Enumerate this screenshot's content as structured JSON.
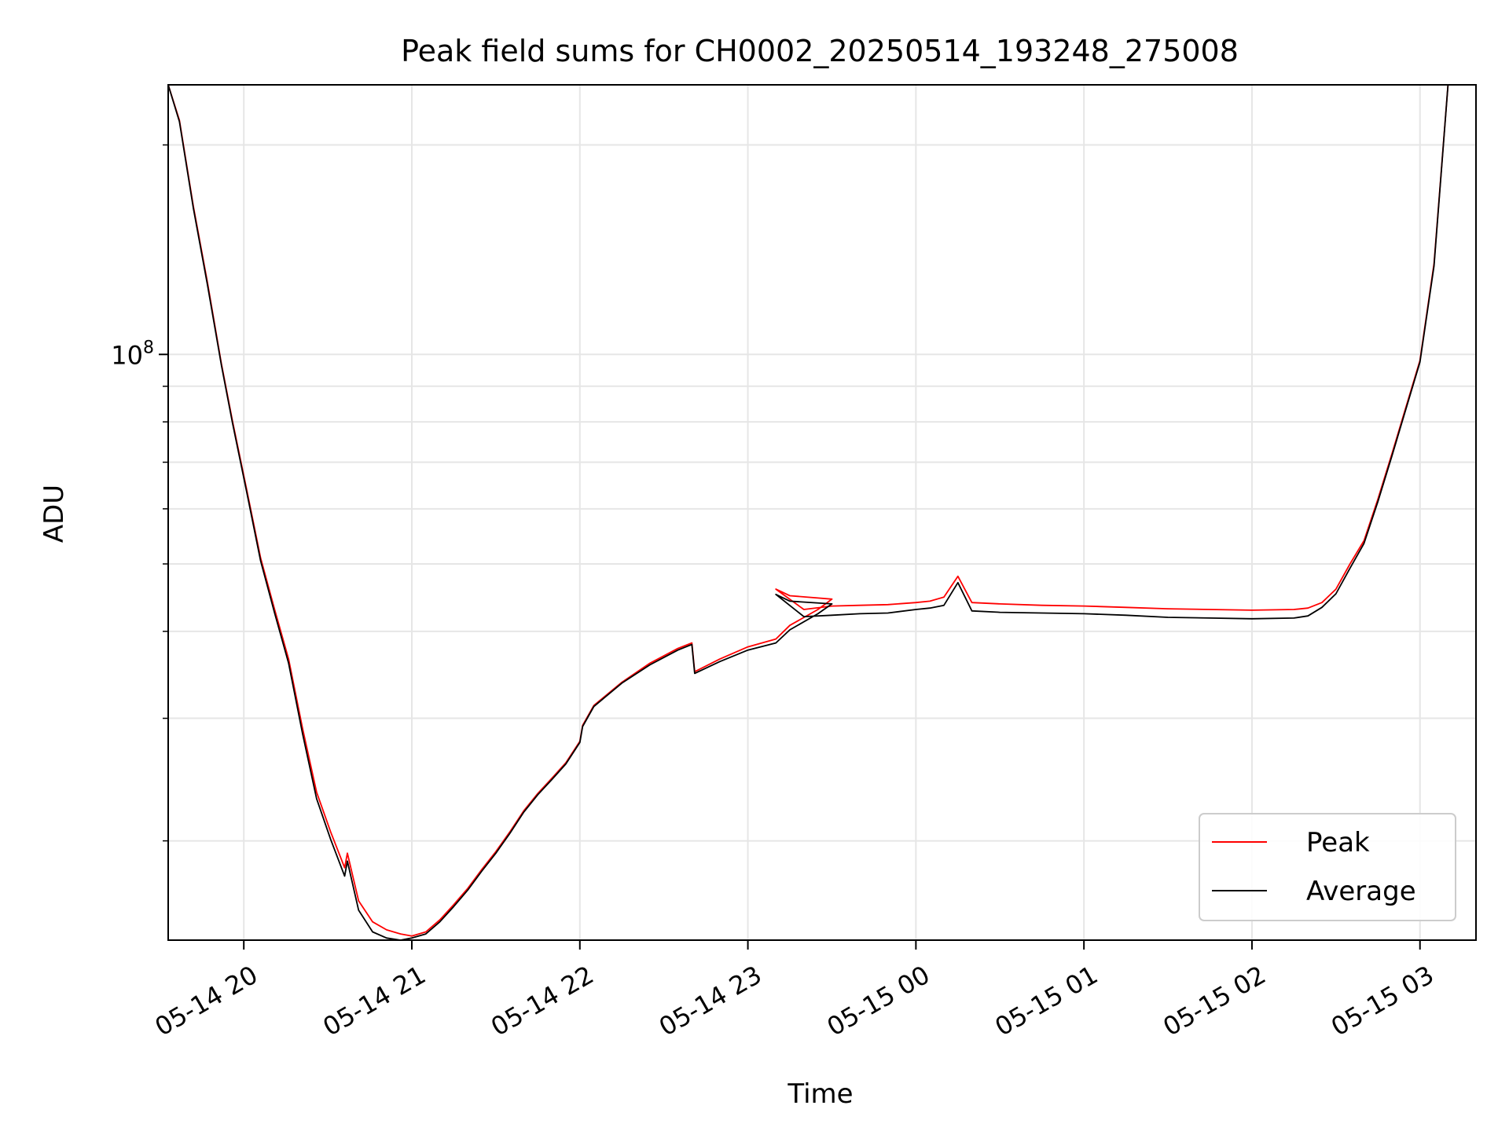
{
  "chart_data": {
    "type": "line",
    "title": "Peak field sums for CH0002_20250514_193248_275008",
    "xlabel": "Time",
    "ylabel": "ADU",
    "x_scale": "time",
    "y_scale": "log",
    "grid": true,
    "legend_position": "lower-right",
    "xlim": [
      "2025-05-14 19:33",
      "2025-05-15 03:20"
    ],
    "ylim": [
      14400000,
      244000000
    ],
    "x_ticks": [
      {
        "t": "2025-05-14 20:00",
        "label": "05-14 20"
      },
      {
        "t": "2025-05-14 21:00",
        "label": "05-14 21"
      },
      {
        "t": "2025-05-14 22:00",
        "label": "05-14 22"
      },
      {
        "t": "2025-05-14 23:00",
        "label": "05-14 23"
      },
      {
        "t": "2025-05-15 00:00",
        "label": "05-15 00"
      },
      {
        "t": "2025-05-15 01:00",
        "label": "05-15 01"
      },
      {
        "t": "2025-05-15 02:00",
        "label": "05-15 02"
      },
      {
        "t": "2025-05-15 03:00",
        "label": "05-15 03"
      }
    ],
    "y_major_ticks": [
      {
        "value": 100000000,
        "base": "10",
        "exp": "8"
      }
    ],
    "y_minor_ticks": [
      20000000,
      30000000,
      40000000,
      50000000,
      60000000,
      70000000,
      80000000,
      90000000,
      200000000
    ],
    "x": [
      "2025-05-14 19:33",
      "2025-05-14 19:37",
      "2025-05-14 19:42",
      "2025-05-14 19:47",
      "2025-05-14 19:52",
      "2025-05-14 19:56",
      "2025-05-14 20:01",
      "2025-05-14 20:06",
      "2025-05-14 20:11",
      "2025-05-14 20:16",
      "2025-05-14 20:21",
      "2025-05-14 20:26",
      "2025-05-14 20:31",
      "2025-05-14 20:36",
      "2025-05-14 20:37",
      "2025-05-14 20:41",
      "2025-05-14 20:46",
      "2025-05-14 20:51",
      "2025-05-14 20:56",
      "2025-05-14 21:00",
      "2025-05-14 21:05",
      "2025-05-14 21:10",
      "2025-05-14 21:15",
      "2025-05-14 21:20",
      "2025-05-14 21:25",
      "2025-05-14 21:30",
      "2025-05-14 21:35",
      "2025-05-14 21:40",
      "2025-05-14 21:45",
      "2025-05-14 21:50",
      "2025-05-14 21:55",
      "2025-05-14 22:00",
      "2025-05-14 22:01",
      "2025-05-14 22:05",
      "2025-05-14 22:15",
      "2025-05-14 22:25",
      "2025-05-14 22:35",
      "2025-05-14 22:40",
      "2025-05-14 22:41",
      "2025-05-14 22:50",
      "2025-05-14 23:00",
      "2025-05-14 23:10",
      "2025-05-14 23:15",
      "2025-05-14 23:25",
      "2025-05-14 23:30",
      "2025-05-14 23:15",
      "2025-05-14 23:10",
      "2025-05-14 23:20",
      "2025-05-14 23:30",
      "2025-05-14 23:40",
      "2025-05-14 23:50",
      "2025-05-15 00:00",
      "2025-05-15 00:05",
      "2025-05-15 00:10",
      "2025-05-15 00:15",
      "2025-05-15 00:20",
      "2025-05-15 00:30",
      "2025-05-15 00:45",
      "2025-05-15 01:00",
      "2025-05-15 01:15",
      "2025-05-15 01:30",
      "2025-05-15 01:45",
      "2025-05-15 02:00",
      "2025-05-15 02:15",
      "2025-05-15 02:20",
      "2025-05-15 02:25",
      "2025-05-15 02:30",
      "2025-05-15 02:35",
      "2025-05-15 02:40",
      "2025-05-15 02:45",
      "2025-05-15 02:50",
      "2025-05-15 02:55",
      "2025-05-15 03:00",
      "2025-05-15 03:05",
      "2025-05-15 03:10"
    ],
    "series": [
      {
        "name": "Peak",
        "color": "#ff0000",
        "values": [
          244000000,
          217000000,
          163000000,
          127000000,
          97000000,
          80000000,
          64000000,
          51000000,
          43000000,
          36500000,
          29000000,
          23500000,
          20600000,
          18300000,
          19200000,
          16400000,
          15300000,
          14900000,
          14700000,
          14600000,
          14800000,
          15400000,
          16200000,
          17100000,
          18200000,
          19300000,
          20600000,
          22100000,
          23400000,
          24600000,
          25900000,
          27800000,
          29300000,
          31300000,
          33800000,
          36000000,
          37800000,
          38500000,
          35000000,
          36500000,
          38000000,
          39000000,
          40800000,
          43000000,
          44500000,
          45000000,
          46000000,
          43000000,
          43500000,
          43600000,
          43700000,
          44000000,
          44200000,
          44800000,
          48000000,
          44000000,
          43800000,
          43600000,
          43500000,
          43300000,
          43100000,
          43000000,
          42900000,
          43000000,
          43200000,
          44000000,
          46000000,
          50000000,
          54000000,
          62000000,
          72000000,
          84000000,
          98000000,
          135000000,
          244000000
        ]
      },
      {
        "name": "Average",
        "color": "#000000",
        "values": [
          244000000,
          216000000,
          162000000,
          126000000,
          96500000,
          79500000,
          63500000,
          50500000,
          42500000,
          36000000,
          28500000,
          23000000,
          20100000,
          17800000,
          18700000,
          15900000,
          14800000,
          14500000,
          14400000,
          14500000,
          14700000,
          15300000,
          16100000,
          17000000,
          18100000,
          19200000,
          20500000,
          22000000,
          23300000,
          24500000,
          25800000,
          27700000,
          29200000,
          31200000,
          33700000,
          35800000,
          37600000,
          38300000,
          34800000,
          36200000,
          37600000,
          38500000,
          40200000,
          42400000,
          43800000,
          44200000,
          45200000,
          42000000,
          42200000,
          42400000,
          42500000,
          43000000,
          43200000,
          43600000,
          47000000,
          42800000,
          42600000,
          42500000,
          42400000,
          42200000,
          41900000,
          41800000,
          41700000,
          41800000,
          42100000,
          43300000,
          45300000,
          49300000,
          53500000,
          61500000,
          71500000,
          83500000,
          97500000,
          134000000,
          244000000
        ]
      }
    ]
  }
}
